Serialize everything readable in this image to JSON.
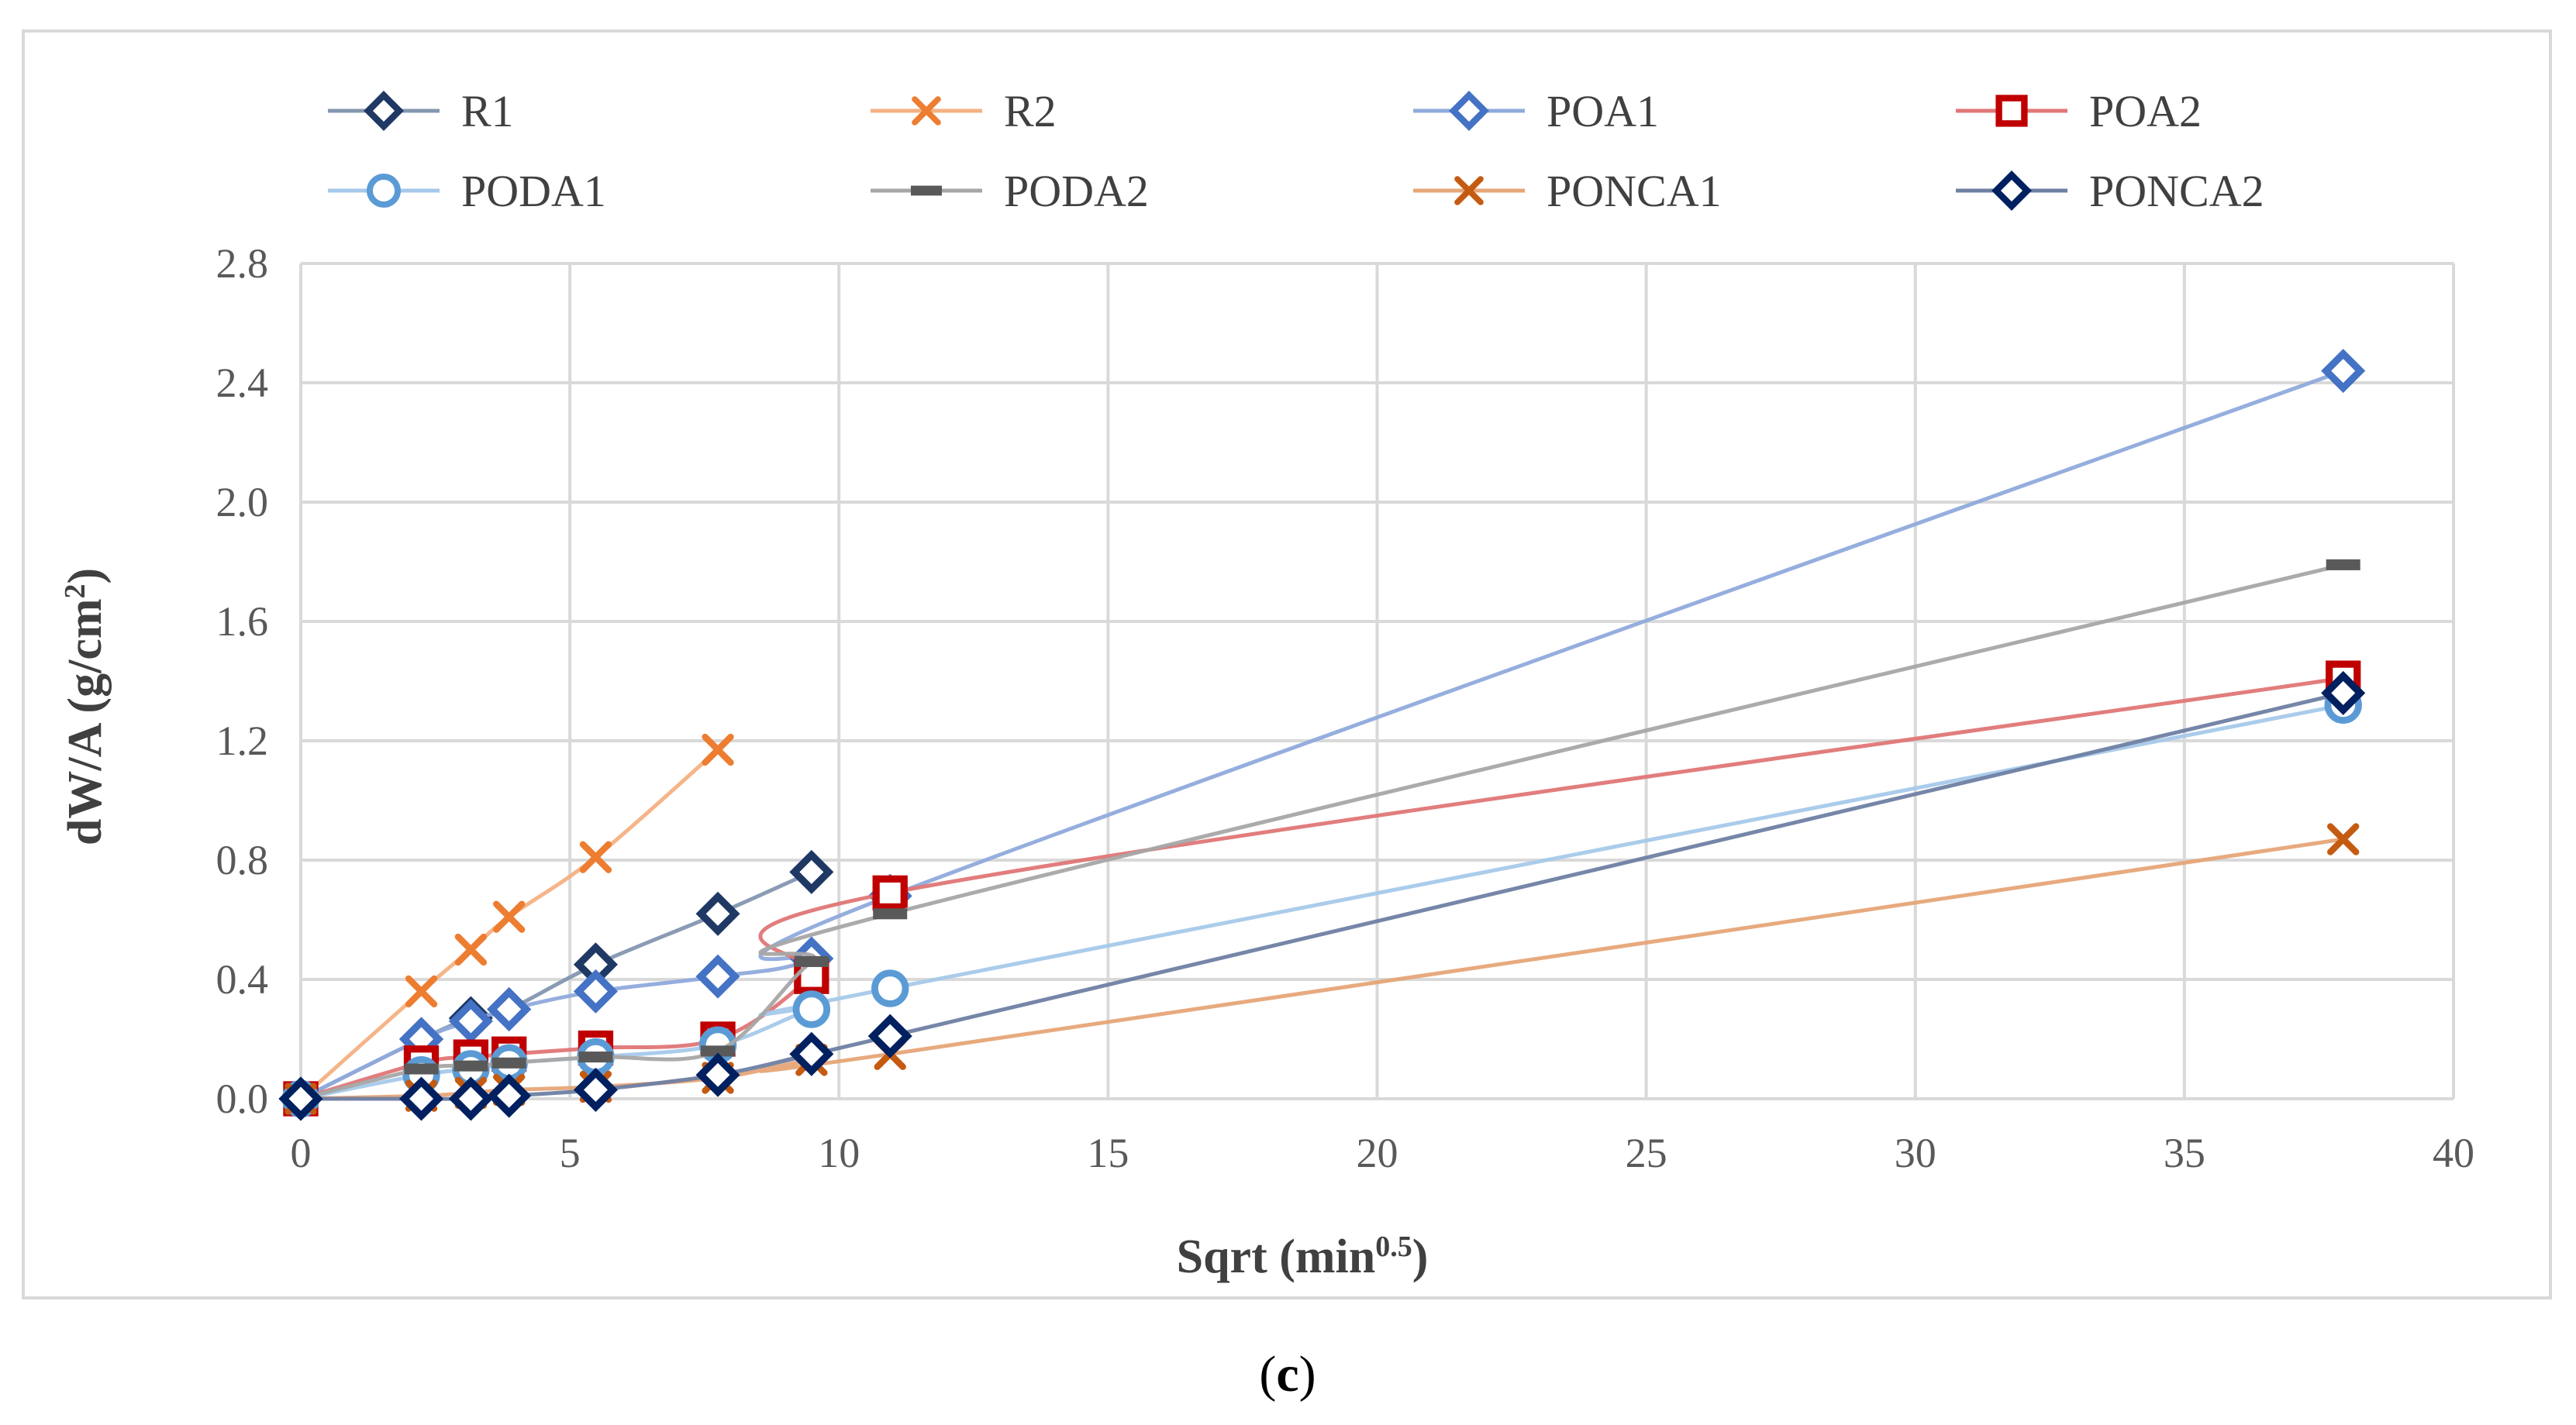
{
  "chart_data": {
    "type": "line",
    "title": "",
    "xlabel_main": "Sqrt (min",
    "xlabel_sup": "0.5",
    "xlabel_end": ")",
    "ylabel_main": "dW/A (g/cm",
    "ylabel_sup": "2",
    "ylabel_end": ")",
    "xlim": [
      0,
      40
    ],
    "ylim": [
      0,
      2.8
    ],
    "x_ticks": [
      0,
      5,
      10,
      15,
      20,
      25,
      30,
      35,
      40
    ],
    "x_tick_labels": [
      "0",
      "5",
      "10",
      "15",
      "20",
      "25",
      "30",
      "35",
      "40"
    ],
    "y_ticks": [
      0,
      0.4,
      0.8,
      1.2,
      1.6,
      2.0,
      2.4,
      2.8
    ],
    "y_tick_labels": [
      "0.0",
      "0.4",
      "0.8",
      "1.2",
      "1.6",
      "2.0",
      "2.4",
      "2.8"
    ],
    "grid": true,
    "legend_position": "top",
    "caption_open": "(",
    "caption_letter": "c",
    "caption_close": ")",
    "series": [
      {
        "name": "R1",
        "marker": "diamond",
        "color": "#1f3864",
        "line_color": "#8497b0",
        "x": [
          0,
          2.24,
          3.16,
          3.87,
          5.48,
          7.75,
          9.49
        ],
        "y": [
          0,
          0.2,
          0.27,
          0.3,
          0.45,
          0.62,
          0.76
        ]
      },
      {
        "name": "R2",
        "marker": "x",
        "color": "#ed7d31",
        "line_color": "#f4b183",
        "x": [
          0,
          2.24,
          3.16,
          3.87,
          5.48,
          7.75
        ],
        "y": [
          0,
          0.36,
          0.5,
          0.61,
          0.81,
          1.17
        ]
      },
      {
        "name": "POA1",
        "marker": "diamond",
        "color": "#4472c4",
        "line_color": "#8faadc",
        "x": [
          0,
          2.24,
          3.16,
          3.87,
          5.48,
          7.75,
          9.49,
          10.95,
          37.95
        ],
        "y": [
          0,
          0.2,
          0.26,
          0.3,
          0.36,
          0.41,
          0.47,
          0.68,
          2.44
        ]
      },
      {
        "name": "POA2",
        "marker": "square",
        "color": "#c00000",
        "line_color": "#e07676",
        "x": [
          0,
          2.24,
          3.16,
          3.87,
          5.48,
          7.75,
          9.49,
          10.95,
          37.95
        ],
        "y": [
          0,
          0.12,
          0.14,
          0.15,
          0.17,
          0.2,
          0.41,
          0.69,
          1.41
        ]
      },
      {
        "name": "PODA1",
        "marker": "circle",
        "color": "#5b9bd5",
        "line_color": "#a6c9ea",
        "x": [
          0,
          2.24,
          3.16,
          3.87,
          5.48,
          7.75,
          9.49,
          10.95,
          37.95
        ],
        "y": [
          0,
          0.08,
          0.1,
          0.12,
          0.14,
          0.18,
          0.3,
          0.37,
          1.32
        ]
      },
      {
        "name": "PODA2",
        "marker": "dash",
        "color": "#595959",
        "line_color": "#a6a6a6",
        "x": [
          0,
          2.24,
          3.16,
          3.87,
          5.48,
          7.75,
          9.49,
          10.95,
          37.95
        ],
        "y": [
          0,
          0.1,
          0.11,
          0.12,
          0.14,
          0.16,
          0.46,
          0.62,
          1.79
        ]
      },
      {
        "name": "PONCA1",
        "marker": "x",
        "color": "#c55a11",
        "line_color": "#e6a577",
        "x": [
          0,
          2.24,
          3.16,
          3.87,
          5.48,
          7.75,
          9.49,
          10.95,
          37.95
        ],
        "y": [
          0,
          0.01,
          0.02,
          0.03,
          0.04,
          0.07,
          0.13,
          0.15,
          0.87
        ]
      },
      {
        "name": "PONCA2",
        "marker": "diamond",
        "color": "#002060",
        "line_color": "#6e7fa3",
        "x": [
          0,
          2.24,
          3.16,
          3.87,
          5.48,
          7.75,
          9.49,
          10.95,
          37.95
        ],
        "y": [
          0,
          0,
          0,
          0.01,
          0.03,
          0.08,
          0.15,
          0.21,
          1.36
        ]
      }
    ]
  }
}
